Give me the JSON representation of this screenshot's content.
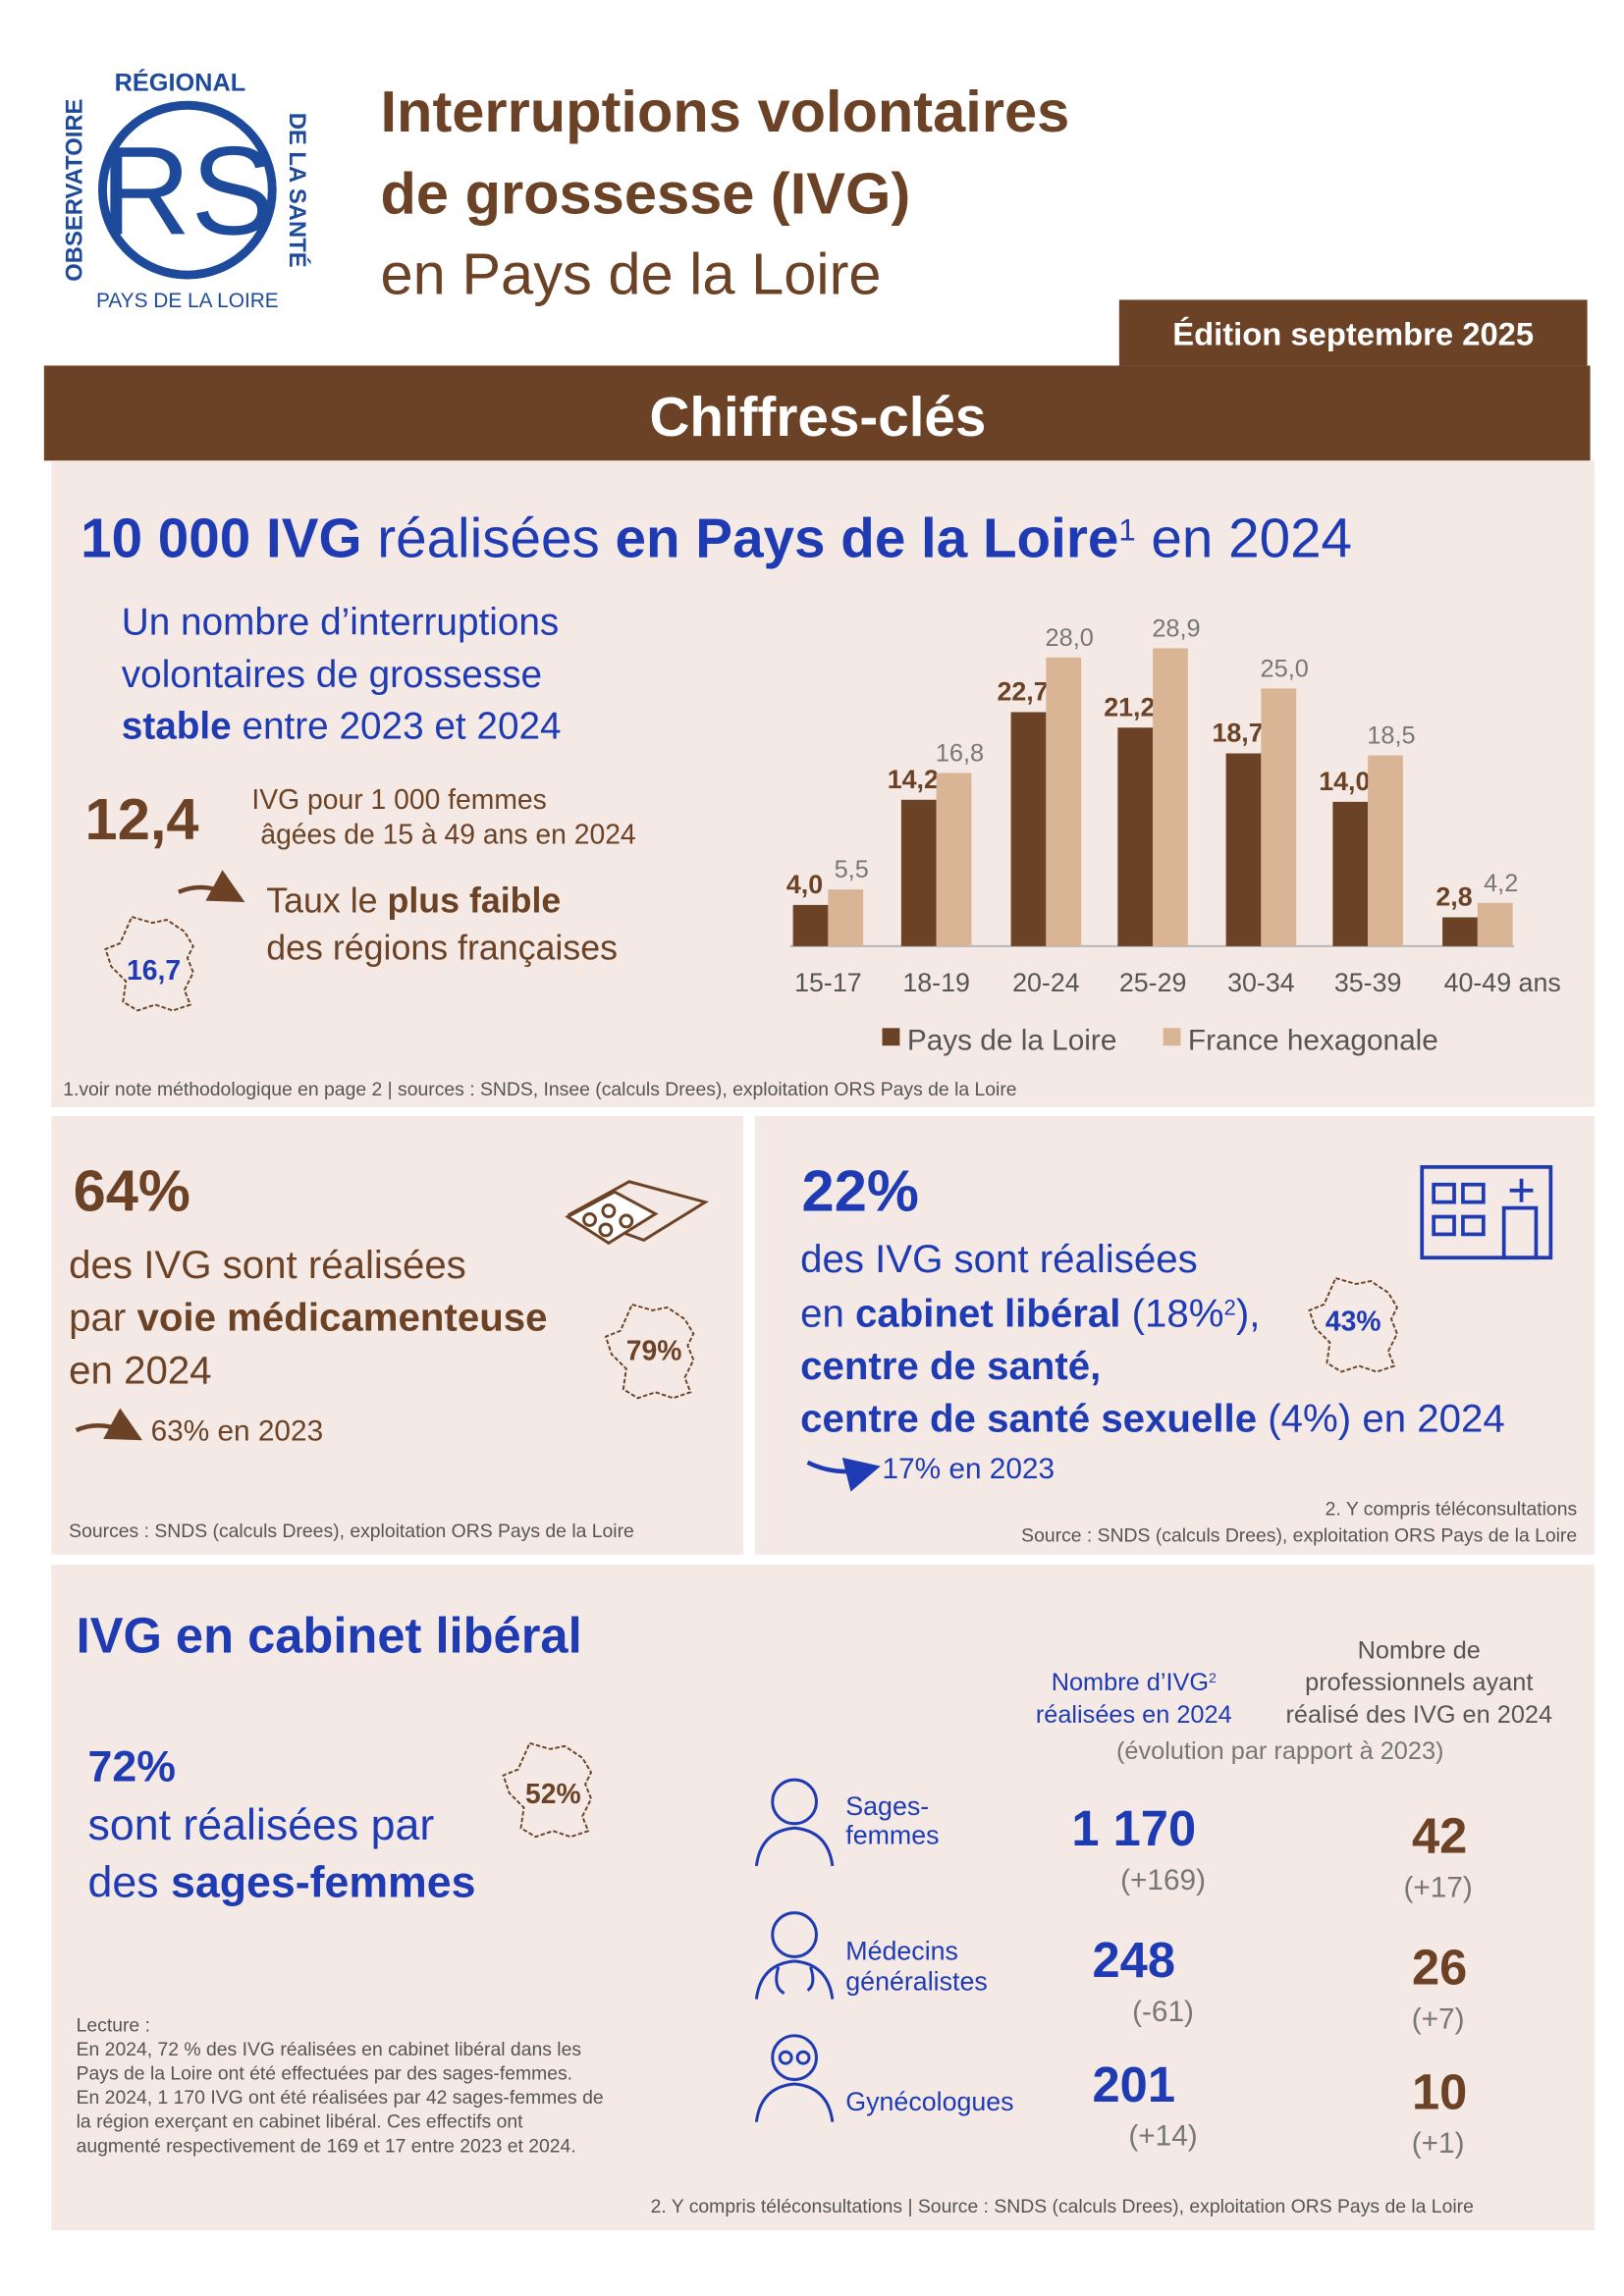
{
  "header": {
    "logo": {
      "top": "RÉGIONAL",
      "left": "OBSERVATOIRE",
      "right": "DE LA SANTÉ",
      "bottom": "PAYS DE LA LOIRE",
      "mark": "RS"
    },
    "title": [
      "Interruptions volontaires",
      "de grossesse (IVG)",
      "en Pays de la Loire"
    ],
    "edition": "Édition septembre 2025",
    "banner": "Chiffres-clés"
  },
  "key_figure": {
    "headline": [
      "10 000 IVG",
      " réalisées ",
      "en Pays de la Loire",
      "1",
      " en 2024"
    ],
    "trend": [
      "Un nombre d’interruptions",
      "volontaires de grossesse",
      "stable",
      " entre 2023 et 2024"
    ],
    "rate": "12,4",
    "rate_text": [
      "IVG pour 1 000 femmes",
      "âgées de 15 à 49 ans en 2024"
    ],
    "rank": [
      "Taux le ",
      "plus faible",
      "des régions françaises"
    ],
    "france_rate": "16,7",
    "note": "1.voir note méthodologique en page 2 | sources : SNDS, Insee (calculs Drees), exploitation ORS Pays de la Loire"
  },
  "chart_data": {
    "type": "bar",
    "categories": [
      "15-17",
      "18-19",
      "20-24",
      "25-29",
      "30-34",
      "35-39",
      "40-49"
    ],
    "x_unit": "ans",
    "series": [
      {
        "name": "Pays de la Loire",
        "color": "#6b4226",
        "values": [
          4.0,
          14.2,
          22.7,
          21.2,
          18.7,
          14.0,
          2.8
        ],
        "value_labels": [
          "4,0",
          "14,2",
          "22,7",
          "21,2",
          "18,7",
          "14,0",
          "2,8"
        ]
      },
      {
        "name": "France hexagonale",
        "color": "#d9b596",
        "values": [
          5.5,
          16.8,
          28.0,
          28.9,
          25.0,
          18.5,
          4.2
        ],
        "value_labels": [
          "5,5",
          "16,8",
          "28,0",
          "28,9",
          "25,0",
          "18,5",
          "4,2"
        ]
      }
    ]
  },
  "medication": {
    "share": "64%",
    "text": [
      "des IVG sont réalisées",
      "par ",
      "voie médicamenteuse",
      "en 2024"
    ],
    "france_share": "79%",
    "previous": "63% en 2023",
    "source": "Sources : SNDS (calculs Drees), exploitation ORS Pays de la Loire"
  },
  "setting": {
    "share": "22%",
    "text": [
      "des IVG sont réalisées",
      "en ",
      "cabinet libéral",
      " (18%",
      "2",
      "),",
      "centre de santé,",
      "centre de santé sexuelle",
      " (4%) en 2024"
    ],
    "france_share": "43%",
    "previous": "17% en 2023",
    "note": "2. Y compris téléconsultations",
    "source": "Source : SNDS (calculs Drees), exploitation ORS Pays de la Loire"
  },
  "private_practice": {
    "title": "IVG en cabinet libéral",
    "share": "72%",
    "text": [
      "sont réalisées par",
      "des ",
      "sages-femmes"
    ],
    "france_share": "52%",
    "reading": [
      "Lecture :",
      "En 2024, 72 % des IVG réalisées en cabinet libéral dans les",
      "Pays de la Loire ont été effectuées par des sages-femmes.",
      "En 2024, 1 170 IVG ont été réalisées par 42 sages-femmes de",
      "la région exerçant en cabinet libéral. Ces effectifs ont",
      "augmenté respectivement de 169 et 17 entre 2023 et 2024."
    ],
    "columns": {
      "ivg": [
        "Nombre d’IVG",
        "2",
        "réalisées en 2024"
      ],
      "professionals": [
        "Nombre de",
        "professionnels ayant",
        "réalisé des IVG en 2024"
      ],
      "evolution": "(évolution par rapport à 2023)"
    },
    "rows": [
      {
        "label": [
          "Sages-",
          "femmes"
        ],
        "ivg": "1 170",
        "ivg_change": "(+169)",
        "professionals": "42",
        "professionals_change": "(+17)"
      },
      {
        "label": [
          "Médecins",
          "généralistes"
        ],
        "ivg": "248",
        "ivg_change": "(-61)",
        "professionals": "26",
        "professionals_change": "(+7)"
      },
      {
        "label": [
          "Gynécologues"
        ],
        "ivg": "201",
        "ivg_change": "(+14)",
        "professionals": "10",
        "professionals_change": "(+1)"
      }
    ],
    "source": "2. Y compris téléconsultations | Source : SNDS (calculs Drees), exploitation ORS Pays de la Loire"
  }
}
